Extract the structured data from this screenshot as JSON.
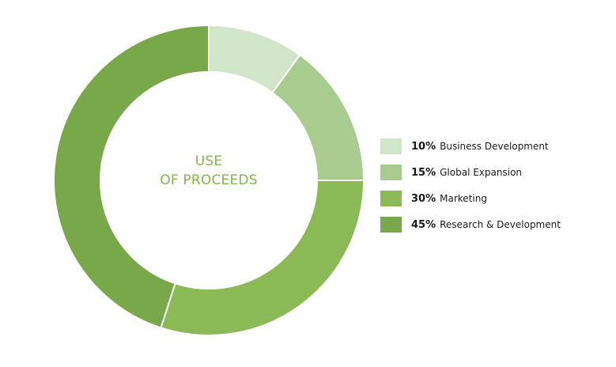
{
  "chart_data": {
    "type": "pie",
    "title": "",
    "center_label": [
      "USE",
      "OF PROCEEDS"
    ],
    "legend_position": "right",
    "slices": [
      {
        "name": "Business Development",
        "value": 10,
        "pct_label": "10%",
        "color": "#d1e5c9"
      },
      {
        "name": "Global Expansion",
        "value": 15,
        "pct_label": "15%",
        "color": "#a8cb8f"
      },
      {
        "name": "Marketing",
        "value": 30,
        "pct_label": "30%",
        "color": "#8ab955"
      },
      {
        "name": "Research & Development",
        "value": 45,
        "pct_label": "45%",
        "color": "#79a84a"
      }
    ]
  }
}
